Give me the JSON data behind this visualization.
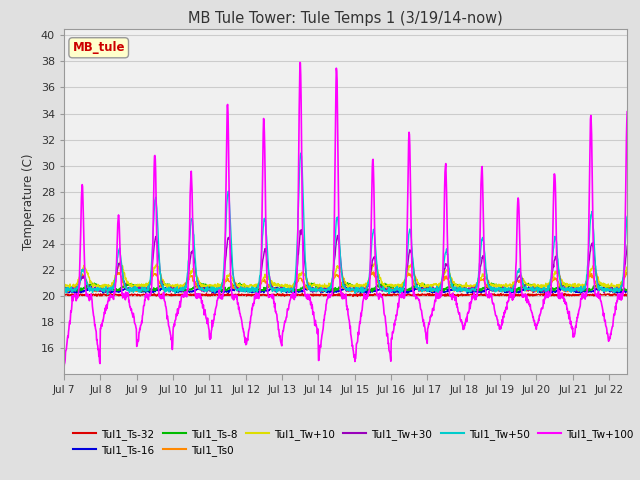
{
  "title": "MB Tule Tower: Tule Temps 1 (3/19/14-now)",
  "ylabel": "Temperature (C)",
  "annotation": "MB_tule",
  "n_days": 15.5,
  "ylim": [
    14,
    40.5
  ],
  "yticks": [
    16,
    18,
    20,
    22,
    24,
    26,
    28,
    30,
    32,
    34,
    36,
    38,
    40
  ],
  "x_labels": [
    "Jul 7",
    "Jul 8",
    "Jul 9",
    "Jul 10",
    "Jul 11",
    "Jul 12",
    "Jul 13",
    "Jul 14",
    "Jul 15",
    "Jul 16",
    "Jul 17",
    "Jul 18",
    "Jul 19",
    "Jul 20",
    "Jul 21",
    "Jul 22"
  ],
  "series": [
    {
      "name": "Tul1_Ts-32",
      "color": "#dd0000",
      "lw": 1.0
    },
    {
      "name": "Tul1_Ts-16",
      "color": "#0000dd",
      "lw": 1.0
    },
    {
      "name": "Tul1_Ts-8",
      "color": "#00bb00",
      "lw": 1.0
    },
    {
      "name": "Tul1_Ts0",
      "color": "#ff8800",
      "lw": 1.0
    },
    {
      "name": "Tul1_Tw+10",
      "color": "#dddd00",
      "lw": 1.0
    },
    {
      "name": "Tul1_Tw+30",
      "color": "#9900bb",
      "lw": 1.0
    },
    {
      "name": "Tul1_Tw+50",
      "color": "#00cccc",
      "lw": 1.0
    },
    {
      "name": "Tul1_Tw+100",
      "color": "#ff00ff",
      "lw": 1.2
    }
  ],
  "bg_color": "#e0e0e0",
  "plot_bg": "#f0f0f0",
  "grid_color": "#cccccc",
  "legend_ncol": 6
}
